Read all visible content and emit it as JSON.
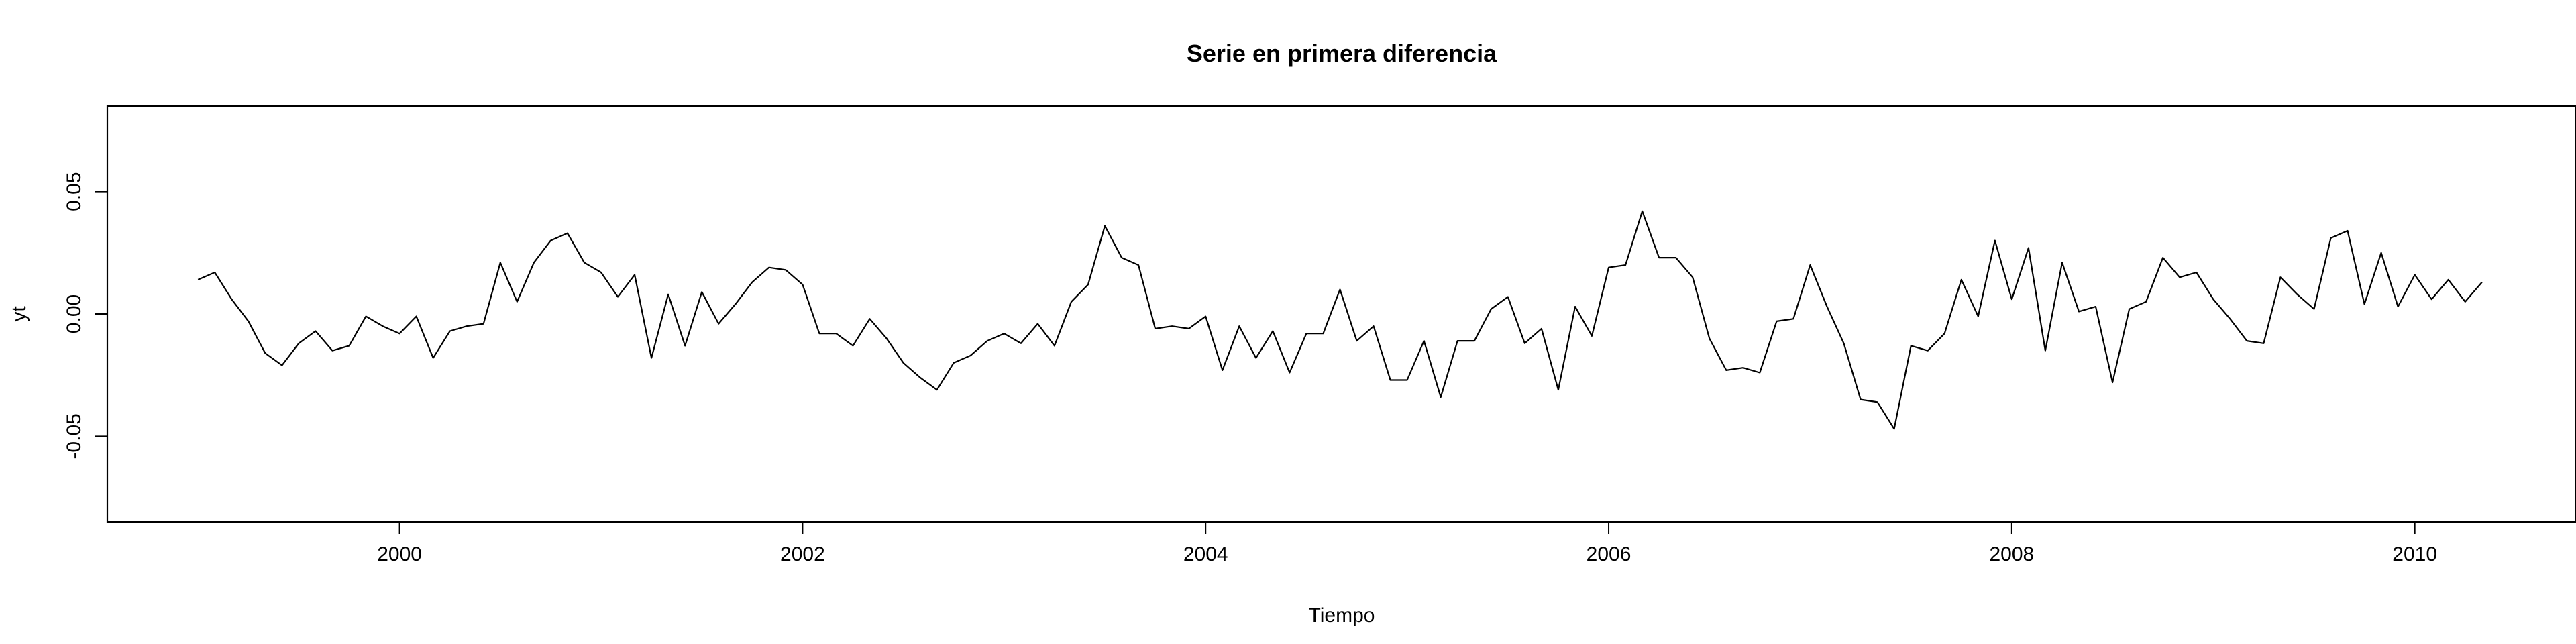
{
  "chart_data": {
    "type": "line",
    "title": "Serie en primera diferencia",
    "xlabel": "Tiempo",
    "ylabel": "yt",
    "xlim": [
      1998.55,
      2010.8
    ],
    "ylim": [
      -0.085,
      0.085
    ],
    "x_ticks": [
      2000,
      2002,
      2004,
      2006,
      2008,
      2010
    ],
    "x_tick_labels": [
      "2000",
      "2002",
      "2004",
      "2006",
      "2008",
      "2010"
    ],
    "y_ticks": [
      -0.05,
      0.0,
      0.05
    ],
    "y_tick_labels": [
      "-0.05",
      "0.00",
      "0.05"
    ],
    "grid": false,
    "colors": {
      "line": "#000000",
      "axes": "#000000",
      "background": "#ffffff"
    },
    "series": [
      {
        "start": 1999.0,
        "frequency": 12,
        "values": [
          0.014,
          0.017,
          0.006,
          -0.003,
          -0.016,
          -0.021,
          -0.012,
          -0.007,
          -0.015,
          -0.013,
          -0.001,
          -0.005,
          -0.008,
          -0.001,
          -0.018,
          -0.007,
          -0.005,
          -0.004,
          0.021,
          0.005,
          0.021,
          0.03,
          0.033,
          0.021,
          0.017,
          0.007,
          0.016,
          -0.018,
          0.008,
          -0.013,
          0.009,
          -0.004,
          0.004,
          0.013,
          0.019,
          0.018,
          0.012,
          -0.008,
          -0.008,
          -0.013,
          -0.002,
          -0.01,
          -0.02,
          -0.026,
          -0.031,
          -0.02,
          -0.017,
          -0.011,
          -0.008,
          -0.012,
          -0.004,
          -0.013,
          0.005,
          0.012,
          0.036,
          0.023,
          0.02,
          -0.006,
          -0.005,
          -0.006,
          -0.001,
          -0.023,
          -0.005,
          -0.018,
          -0.007,
          -0.024,
          -0.008,
          -0.008,
          0.01,
          -0.011,
          -0.005,
          -0.027,
          -0.027,
          -0.011,
          -0.034,
          -0.011,
          -0.011,
          0.002,
          0.007,
          -0.012,
          -0.006,
          -0.031,
          0.003,
          -0.009,
          0.019,
          0.02,
          0.042,
          0.023,
          0.023,
          0.015,
          -0.01,
          -0.023,
          -0.022,
          -0.024,
          -0.003,
          -0.002,
          0.02,
          0.003,
          -0.012,
          -0.035,
          -0.036,
          -0.047,
          -0.013,
          -0.015,
          -0.008,
          0.014,
          -0.001,
          0.03,
          0.006,
          0.027,
          -0.015,
          0.021,
          0.001,
          0.003,
          -0.028,
          0.002,
          0.005,
          0.023,
          0.015,
          0.017,
          0.006,
          -0.002,
          -0.011,
          -0.012,
          0.015,
          0.008,
          0.002,
          0.031,
          0.034,
          0.004,
          0.025,
          0.003,
          0.016,
          0.006,
          0.014,
          0.005,
          0.013
        ]
      }
    ]
  }
}
